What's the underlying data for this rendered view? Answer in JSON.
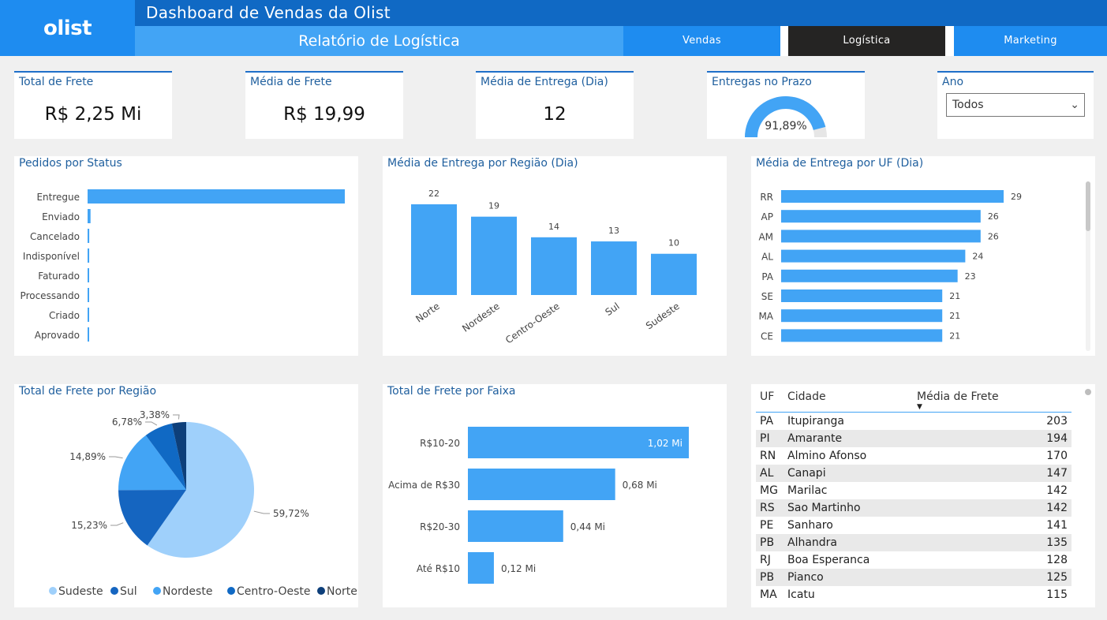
{
  "header": {
    "logo": "olist",
    "title": "Dashboard de Vendas da Olist",
    "subtitle": "Relatório de Logística",
    "nav": [
      "Vendas",
      "Logística",
      "Marketing"
    ],
    "active_nav": "Logística"
  },
  "kpis": {
    "total_frete": {
      "label": "Total de Frete",
      "value": "R$ 2,25 Mi"
    },
    "media_frete": {
      "label": "Média de Frete",
      "value": "R$ 19,99"
    },
    "media_entrega": {
      "label": "Média de Entrega (Dia)",
      "value": "12"
    },
    "entregas_prazo": {
      "label": "Entregas no Prazo",
      "value": "91,89%",
      "fraction": 0.9189
    }
  },
  "filter": {
    "label": "Ano",
    "selected": "Todos"
  },
  "colors": {
    "accent": "#42a4f5",
    "dark_blue": "#1069c4",
    "medium_blue": "#1565c0",
    "navy": "#0d3f7a",
    "light_blue": "#9fd0fb"
  },
  "charts": {
    "pedidos_status": {
      "title": "Pedidos por Status"
    },
    "entrega_regiao": {
      "title": "Média de Entrega por Região (Dia)"
    },
    "entrega_uf": {
      "title": "Média de Entrega por UF (Dia)"
    },
    "frete_regiao": {
      "title": "Total de Frete por Região"
    },
    "frete_faixa": {
      "title": "Total de Frete por Faixa"
    }
  },
  "chart_data": [
    {
      "id": "pedidos_status",
      "type": "bar",
      "orientation": "horizontal",
      "title": "Pedidos por Status",
      "categories": [
        "Entregue",
        "Enviado",
        "Cancelado",
        "Indisponível",
        "Faturado",
        "Processando",
        "Criado",
        "Aprovado"
      ],
      "values": [
        96478,
        1107,
        625,
        609,
        314,
        301,
        5,
        2
      ]
    },
    {
      "id": "entrega_regiao",
      "type": "bar",
      "title": "Média de Entrega por Região (Dia)",
      "categories": [
        "Norte",
        "Nordeste",
        "Centro-Oeste",
        "Sul",
        "Sudeste"
      ],
      "values": [
        22,
        19,
        14,
        13,
        10
      ]
    },
    {
      "id": "entrega_uf",
      "type": "bar",
      "orientation": "horizontal",
      "title": "Média de Entrega por UF (Dia)",
      "categories": [
        "RR",
        "AP",
        "AM",
        "AL",
        "PA",
        "SE",
        "MA",
        "CE"
      ],
      "values": [
        29,
        26,
        26,
        24,
        23,
        21,
        21,
        21
      ]
    },
    {
      "id": "frete_regiao",
      "type": "pie",
      "title": "Total de Frete por Região",
      "categories": [
        "Sudeste",
        "Sul",
        "Nordeste",
        "Centro-Oeste",
        "Norte"
      ],
      "values": [
        59.72,
        15.23,
        14.89,
        6.78,
        3.38
      ],
      "labels": [
        "59,72%",
        "15,23%",
        "14,89%",
        "6,78%",
        "3,38%"
      ],
      "colors": [
        "#9fd0fb",
        "#1565c0",
        "#42a4f5",
        "#1069c4",
        "#0d3f7a"
      ],
      "legend": "bottom"
    },
    {
      "id": "frete_faixa",
      "type": "bar",
      "orientation": "horizontal",
      "title": "Total de Frete por Faixa",
      "categories": [
        "R$10-20",
        "Acima de R$30",
        "R$20-30",
        "Até R$10"
      ],
      "values": [
        1.02,
        0.68,
        0.44,
        0.12
      ],
      "labels": [
        "1,02 Mi",
        "0,68 Mi",
        "0,44 Mi",
        "0,12 Mi"
      ]
    }
  ],
  "table": {
    "columns": [
      "UF",
      "Cidade",
      "Média de Frete"
    ],
    "sorted_column": "Média de Frete",
    "rows": [
      [
        "PA",
        "Itupiranga",
        "203"
      ],
      [
        "PI",
        "Amarante",
        "194"
      ],
      [
        "RN",
        "Almino Afonso",
        "170"
      ],
      [
        "AL",
        "Canapi",
        "147"
      ],
      [
        "MG",
        "Marilac",
        "142"
      ],
      [
        "RS",
        "Sao Martinho",
        "142"
      ],
      [
        "PE",
        "Sanharo",
        "141"
      ],
      [
        "PB",
        "Alhandra",
        "135"
      ],
      [
        "RJ",
        "Boa Esperanca",
        "128"
      ],
      [
        "PB",
        "Pianco",
        "125"
      ],
      [
        "MA",
        "Icatu",
        "115"
      ]
    ]
  }
}
